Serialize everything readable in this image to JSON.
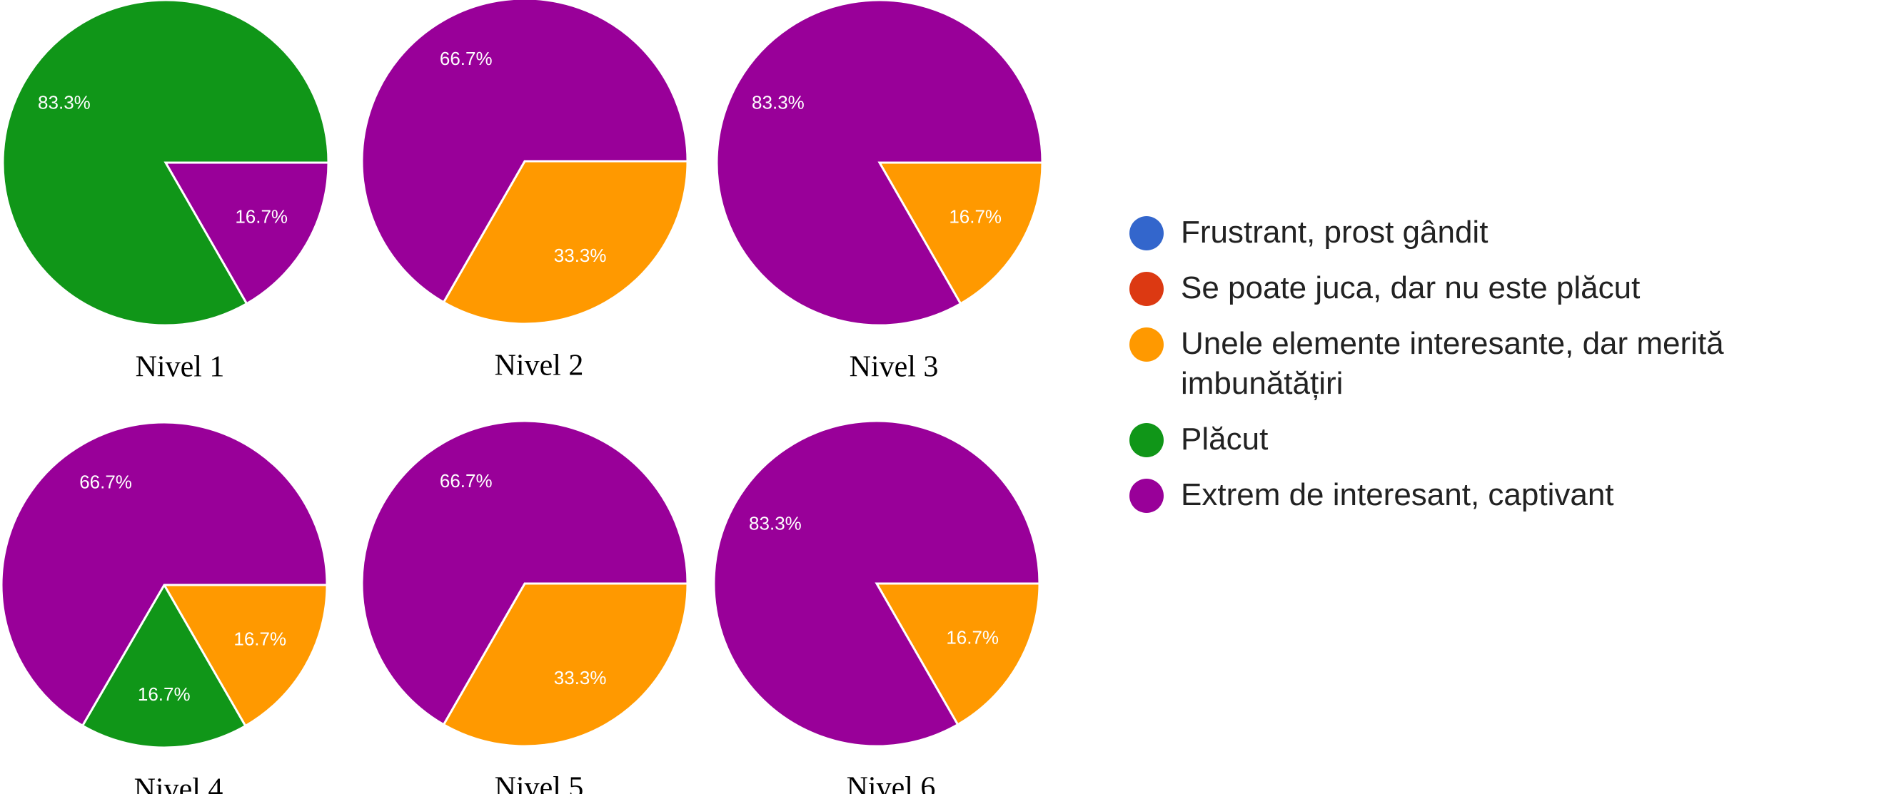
{
  "legend": {
    "items": [
      {
        "label": "Frustrant, prost gândit",
        "color": "#3366cc"
      },
      {
        "label": "Se poate juca, dar nu este plăcut",
        "color": "#dc3912"
      },
      {
        "label": "Unele elemente interesante, dar merită imbunătățiri",
        "color": "#ff9900"
      },
      {
        "label": "Plăcut",
        "color": "#109618"
      },
      {
        "label": "Extrem de interesant, captivant",
        "color": "#990099"
      }
    ]
  },
  "chart_data": [
    {
      "type": "pie",
      "caption": "Nivel 1",
      "slices": [
        {
          "category": "Extrem de interesant, captivant",
          "value": 16.7,
          "label": "16.7%"
        },
        {
          "category": "Plăcut",
          "value": 83.3,
          "label": "83.3%"
        }
      ]
    },
    {
      "type": "pie",
      "caption": "Nivel 2",
      "slices": [
        {
          "category": "Unele elemente interesante, dar merită imbunătățiri",
          "value": 33.3,
          "label": "33.3%"
        },
        {
          "category": "Extrem de interesant, captivant",
          "value": 66.7,
          "label": "66.7%"
        }
      ]
    },
    {
      "type": "pie",
      "caption": "Nivel 3",
      "slices": [
        {
          "category": "Unele elemente interesante, dar merită imbunătățiri",
          "value": 16.7,
          "label": "16.7%"
        },
        {
          "category": "Extrem de interesant, captivant",
          "value": 83.3,
          "label": "83.3%"
        }
      ]
    },
    {
      "type": "pie",
      "caption": "Nivel 4",
      "slices": [
        {
          "category": "Unele elemente interesante, dar merită imbunătățiri",
          "value": 16.7,
          "label": "16.7%"
        },
        {
          "category": "Plăcut",
          "value": 16.7,
          "label": "16.7%"
        },
        {
          "category": "Extrem de interesant, captivant",
          "value": 66.7,
          "label": "66.7%"
        }
      ]
    },
    {
      "type": "pie",
      "caption": "Nivel 5",
      "slices": [
        {
          "category": "Unele elemente interesante, dar merită imbunătățiri",
          "value": 33.3,
          "label": "33.3%"
        },
        {
          "category": "Extrem de interesant, captivant",
          "value": 66.7,
          "label": "66.7%"
        }
      ]
    },
    {
      "type": "pie",
      "caption": "Nivel 6",
      "slices": [
        {
          "category": "Unele elemente interesante, dar merită imbunătățiri",
          "value": 16.7,
          "label": "16.7%"
        },
        {
          "category": "Extrem de interesant, captivant",
          "value": 83.3,
          "label": "83.3%"
        }
      ]
    }
  ]
}
